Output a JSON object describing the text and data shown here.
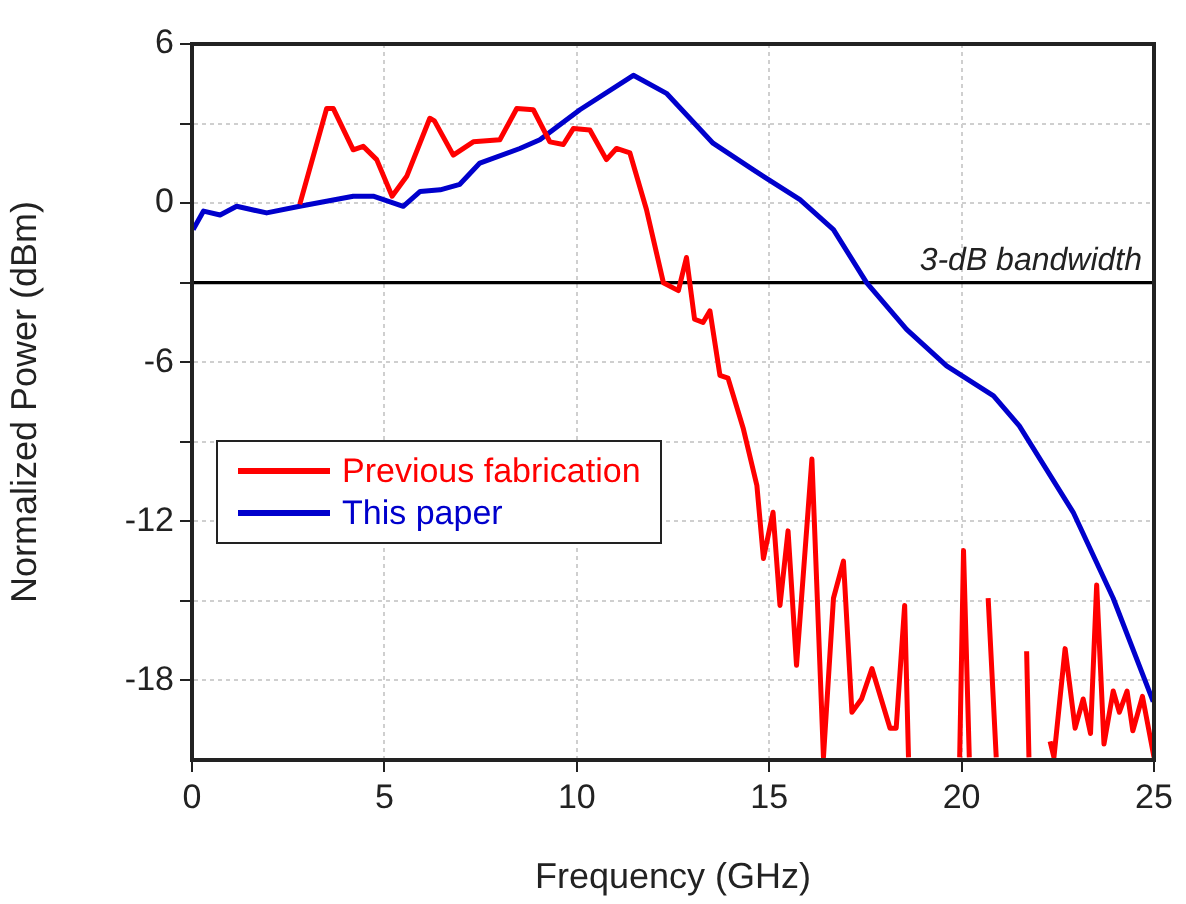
{
  "chart_data": {
    "type": "line",
    "xlabel": "Frequency (GHz)",
    "ylabel": "Normalized Power (dBm)",
    "xlim": [
      0,
      25
    ],
    "xticks": [
      0,
      5,
      10,
      15,
      20,
      25
    ],
    "ylim": [
      -21,
      6
    ],
    "yticks": [
      6,
      {
        "value": 3,
        "label": null
      },
      0,
      {
        "value": -3,
        "label": null
      },
      -6,
      {
        "value": -9,
        "label": null
      },
      -12,
      {
        "value": -15,
        "label": null
      },
      -18
    ],
    "grid": true,
    "legend": "center left",
    "marker": "none",
    "line_style": "solid",
    "ref_lines": [
      {
        "axis": "y",
        "value": -3,
        "label": "3-dB bandwidth",
        "color": "#000000"
      }
    ],
    "series": [
      {
        "name": "Previous fabrication",
        "color": "#ff0000",
        "x": [
          2.8,
          3.5,
          3.67,
          4.19,
          4.45,
          4.8,
          5.2,
          5.58,
          6.18,
          6.3,
          6.79,
          7.31,
          8.0,
          8.44,
          8.87,
          9.3,
          9.65,
          9.91,
          10.34,
          10.77,
          11.03,
          11.38,
          11.81,
          12.25,
          12.64,
          12.85,
          13.06,
          13.28,
          13.46,
          13.72,
          13.93,
          14.33,
          14.68,
          14.85,
          15.1,
          15.28,
          15.49,
          15.71,
          16.11,
          16.41,
          16.67,
          16.93,
          17.15,
          17.4,
          17.67,
          18.14,
          18.3,
          18.52,
          18.62,
          18.7,
          19.95,
          20.05,
          20.2,
          20.4,
          20.69,
          20.9,
          21.2,
          21.69,
          21.75,
          22.2,
          22.3,
          22.4,
          22.69,
          22.95,
          23.16,
          23.35,
          23.51,
          23.7,
          23.94,
          24.1,
          24.3,
          24.45,
          24.7,
          25.0
        ],
        "values": [
          -0.05,
          3.57,
          3.57,
          2.01,
          2.14,
          1.64,
          0.26,
          1.01,
          3.2,
          3.1,
          1.81,
          2.31,
          2.39,
          3.57,
          3.52,
          2.31,
          2.21,
          2.81,
          2.76,
          1.64,
          2.06,
          1.89,
          -0.24,
          -3.0,
          -3.3,
          -2.05,
          -4.38,
          -4.5,
          -4.06,
          -6.5,
          -6.6,
          -8.52,
          -10.65,
          -13.4,
          -11.66,
          -15.17,
          -12.36,
          -17.43,
          -9.65,
          -20.9,
          -14.9,
          -13.5,
          -19.2,
          -18.7,
          -17.55,
          -19.8,
          -19.8,
          -15.17,
          -20.9,
          null,
          -20.9,
          -13.1,
          -20.9,
          null,
          -14.9,
          -20.9,
          null,
          -16.9,
          -20.9,
          null,
          -20.3,
          -20.9,
          -16.8,
          -19.8,
          -18.7,
          -20.0,
          -14.4,
          -20.4,
          -18.4,
          -19.2,
          -18.4,
          -19.9,
          -18.6,
          -20.9
        ]
      },
      {
        "name": "This paper",
        "color": "#0000cc",
        "x": [
          0.03,
          0.3,
          0.73,
          1.16,
          1.94,
          2.8,
          4.19,
          4.71,
          5.49,
          5.93,
          6.45,
          6.96,
          7.48,
          8.52,
          9.04,
          10.08,
          11.47,
          12.33,
          13.54,
          14.58,
          15.8,
          16.67,
          17.53,
          18.57,
          19.61,
          20.83,
          21.5,
          22.9,
          23.94,
          24.98
        ],
        "values": [
          -1.0,
          -0.3,
          -0.45,
          -0.12,
          -0.37,
          -0.12,
          0.26,
          0.26,
          -0.12,
          0.44,
          0.5,
          0.71,
          1.51,
          2.06,
          2.39,
          3.52,
          4.82,
          4.14,
          2.26,
          1.26,
          0.13,
          -1.0,
          -3.0,
          -4.76,
          -6.14,
          -7.27,
          -8.4,
          -11.66,
          -14.9,
          -18.8
        ]
      }
    ]
  }
}
